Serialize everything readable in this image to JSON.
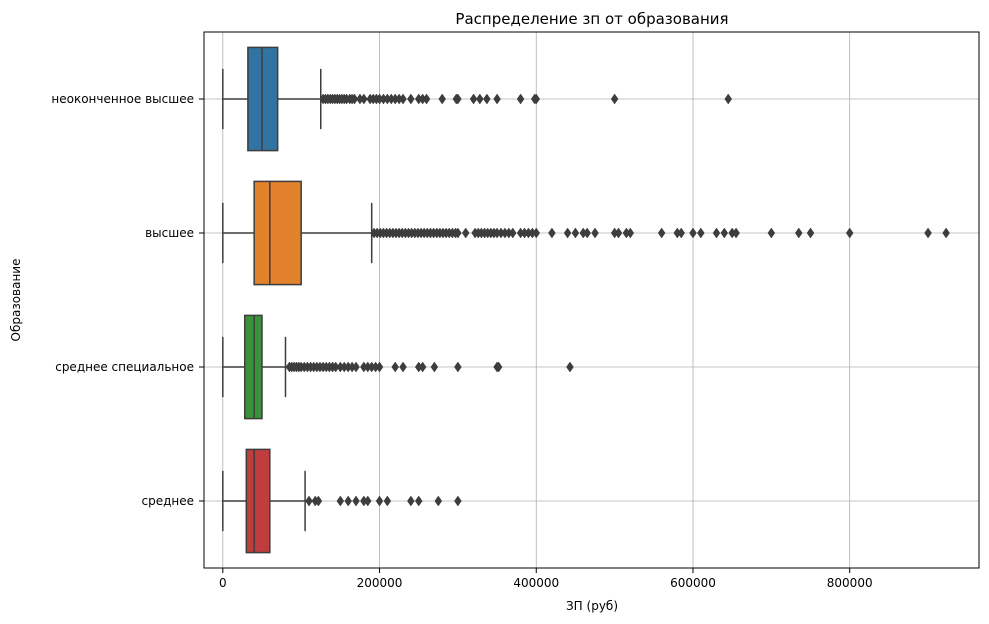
{
  "chart_data": {
    "type": "boxplot",
    "orientation": "horizontal",
    "title": "Распределение зп от образования",
    "xlabel": "ЗП (руб)",
    "ylabel": "Образование",
    "xlim": [
      -24000,
      965000
    ],
    "xticks": [
      0,
      200000,
      400000,
      600000,
      800000
    ],
    "grid": true,
    "categories": [
      {
        "name": "неоконченное высшее",
        "color": "#3274a1",
        "whisker_low": 0,
        "q1": 32000,
        "median": 50000,
        "q3": 70000,
        "whisker_high": 125000,
        "outliers": [
          128000,
          131000,
          134000,
          137000,
          140000,
          143000,
          146000,
          149000,
          152000,
          155000,
          158000,
          162000,
          165000,
          168000,
          175000,
          180000,
          188000,
          192000,
          196000,
          200000,
          205000,
          210000,
          215000,
          220000,
          225000,
          230000,
          240000,
          250000,
          255000,
          260000,
          280000,
          298000,
          300000,
          320000,
          328000,
          337000,
          350000,
          380000,
          398000,
          400000,
          500000,
          645000
        ]
      },
      {
        "name": "высшее",
        "color": "#e1812c",
        "whisker_low": 0,
        "q1": 40000,
        "median": 60000,
        "q3": 100000,
        "whisker_high": 190000,
        "outliers": [
          193000,
          197000,
          201000,
          205000,
          209000,
          213000,
          217000,
          221000,
          225000,
          229000,
          233000,
          237000,
          241000,
          245000,
          249000,
          253000,
          257000,
          261000,
          265000,
          269000,
          273000,
          277000,
          281000,
          285000,
          289000,
          293000,
          297000,
          300000,
          310000,
          322000,
          326000,
          330000,
          334000,
          338000,
          342000,
          346000,
          350000,
          355000,
          360000,
          365000,
          370000,
          380000,
          385000,
          390000,
          395000,
          400000,
          420000,
          440000,
          450000,
          460000,
          465000,
          475000,
          500000,
          505000,
          515000,
          520000,
          560000,
          580000,
          585000,
          600000,
          610000,
          630000,
          640000,
          650000,
          655000,
          700000,
          735000,
          750000,
          800000,
          900000,
          923000
        ]
      },
      {
        "name": "среднее специальное",
        "color": "#3a923a",
        "whisker_low": 0,
        "q1": 28000,
        "median": 40000,
        "q3": 50000,
        "whisker_high": 80000,
        "outliers": [
          85000,
          88000,
          91000,
          94000,
          97000,
          100000,
          104000,
          108000,
          112000,
          116000,
          120000,
          124000,
          128000,
          132000,
          136000,
          140000,
          144000,
          150000,
          155000,
          160000,
          165000,
          170000,
          180000,
          185000,
          190000,
          195000,
          200000,
          220000,
          230000,
          250000,
          255000,
          270000,
          300000,
          350000,
          352000,
          443000
        ]
      },
      {
        "name": "среднее",
        "color": "#c03d3e",
        "whisker_low": 0,
        "q1": 30000,
        "median": 40000,
        "q3": 60000,
        "whisker_high": 105000,
        "outliers": [
          110000,
          118000,
          122000,
          150000,
          160000,
          170000,
          180000,
          185000,
          200000,
          210000,
          240000,
          250000,
          275000,
          300000
        ]
      }
    ]
  }
}
